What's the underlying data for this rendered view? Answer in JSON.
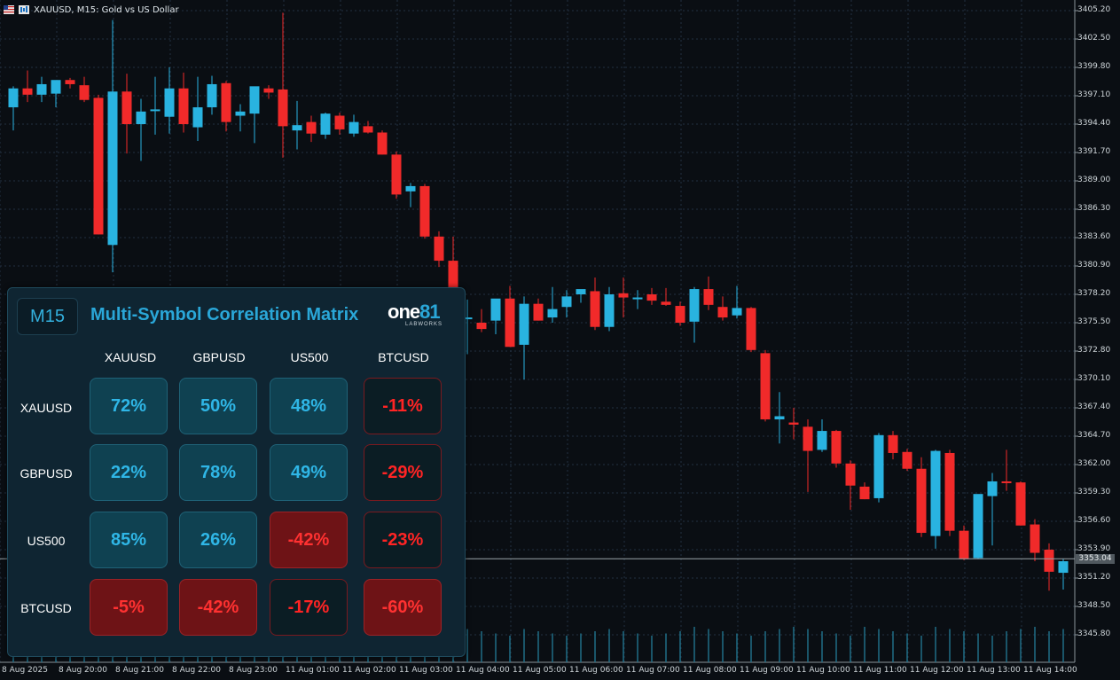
{
  "window": {
    "title": "XAUUSD, M15:  Gold vs US Dollar",
    "icons": [
      "flag-icon",
      "chart-type-icon"
    ]
  },
  "colors": {
    "background": "#0a0e13",
    "bull": "#29b3e0",
    "bear": "#f12a2a",
    "accent": "#2aa7d8",
    "grid": "#233040"
  },
  "price_axis": {
    "labels": [
      "3405.20",
      "3402.50",
      "3399.80",
      "3397.10",
      "3394.40",
      "3391.70",
      "3389.00",
      "3386.30",
      "3383.60",
      "3380.90",
      "3378.20",
      "3375.50",
      "3372.80",
      "3370.10",
      "3367.40",
      "3364.70",
      "3362.00",
      "3359.30",
      "3356.60",
      "3353.90",
      "3351.20",
      "3348.50",
      "3345.80"
    ],
    "current_price": "3353.04"
  },
  "time_axis": {
    "labels": [
      "8 Aug 2025",
      "8 Aug 20:00",
      "8 Aug 21:00",
      "8 Aug 22:00",
      "8 Aug 23:00",
      "11 Aug 01:00",
      "11 Aug 02:00",
      "11 Aug 03:00",
      "11 Aug 04:00",
      "11 Aug 05:00",
      "11 Aug 06:00",
      "11 Aug 07:00",
      "11 Aug 08:00",
      "11 Aug 09:00",
      "11 Aug 10:00",
      "11 Aug 11:00",
      "11 Aug 12:00",
      "11 Aug 13:00",
      "11 Aug 14:00"
    ]
  },
  "chart_data": {
    "type": "candlestick",
    "symbol": "XAUUSD",
    "timeframe": "M15",
    "ylim": [
      3344.5,
      3406.5
    ],
    "candles": [
      {
        "o": 3396.0,
        "h": 3398.0,
        "l": 3393.8,
        "c": 3397.8
      },
      {
        "o": 3397.8,
        "h": 3399.5,
        "l": 3396.5,
        "c": 3397.2
      },
      {
        "o": 3397.2,
        "h": 3398.9,
        "l": 3396.5,
        "c": 3398.2
      },
      {
        "o": 3397.3,
        "h": 3398.5,
        "l": 3396.0,
        "c": 3398.6
      },
      {
        "o": 3398.6,
        "h": 3398.8,
        "l": 3397.8,
        "c": 3398.2
      },
      {
        "o": 3398.1,
        "h": 3398.9,
        "l": 3396.5,
        "c": 3396.7
      },
      {
        "o": 3396.9,
        "h": 3397.2,
        "l": 3383.9,
        "c": 3383.9
      },
      {
        "o": 3382.9,
        "h": 3404.3,
        "l": 3380.3,
        "c": 3397.5
      },
      {
        "o": 3397.5,
        "h": 3399.2,
        "l": 3391.6,
        "c": 3394.4
      },
      {
        "o": 3394.4,
        "h": 3396.8,
        "l": 3390.9,
        "c": 3395.6
      },
      {
        "o": 3395.7,
        "h": 3398.9,
        "l": 3393.4,
        "c": 3395.8
      },
      {
        "o": 3395.1,
        "h": 3399.8,
        "l": 3393.5,
        "c": 3397.8
      },
      {
        "o": 3397.8,
        "h": 3399.3,
        "l": 3393.6,
        "c": 3394.4
      },
      {
        "o": 3394.1,
        "h": 3398.9,
        "l": 3392.8,
        "c": 3396.0
      },
      {
        "o": 3396.0,
        "h": 3399.0,
        "l": 3395.3,
        "c": 3398.2
      },
      {
        "o": 3398.3,
        "h": 3398.5,
        "l": 3393.7,
        "c": 3394.6
      },
      {
        "o": 3395.2,
        "h": 3396.3,
        "l": 3393.7,
        "c": 3395.6
      },
      {
        "o": 3395.4,
        "h": 3397.4,
        "l": 3392.6,
        "c": 3398.0
      },
      {
        "o": 3397.8,
        "h": 3398.1,
        "l": 3396.8,
        "c": 3397.4
      },
      {
        "o": 3397.7,
        "h": 3405.0,
        "l": 3391.2,
        "c": 3394.2
      },
      {
        "o": 3393.8,
        "h": 3396.6,
        "l": 3392.0,
        "c": 3394.3
      },
      {
        "o": 3394.6,
        "h": 3395.2,
        "l": 3392.7,
        "c": 3393.5
      },
      {
        "o": 3393.4,
        "h": 3395.5,
        "l": 3393.0,
        "c": 3395.4
      },
      {
        "o": 3395.2,
        "h": 3395.5,
        "l": 3393.4,
        "c": 3393.9
      },
      {
        "o": 3393.5,
        "h": 3395.3,
        "l": 3393.2,
        "c": 3394.6
      },
      {
        "o": 3394.2,
        "h": 3394.7,
        "l": 3393.5,
        "c": 3393.6
      },
      {
        "o": 3393.6,
        "h": 3393.8,
        "l": 3391.5,
        "c": 3391.5
      },
      {
        "o": 3391.5,
        "h": 3391.8,
        "l": 3387.3,
        "c": 3387.7
      },
      {
        "o": 3388.0,
        "h": 3388.8,
        "l": 3386.5,
        "c": 3388.5
      },
      {
        "o": 3388.5,
        "h": 3388.7,
        "l": 3383.5,
        "c": 3383.7
      },
      {
        "o": 3383.7,
        "h": 3384.2,
        "l": 3380.8,
        "c": 3381.4
      },
      {
        "o": 3381.4,
        "h": 3383.7,
        "l": 3376.2,
        "c": 3376.5
      },
      {
        "o": 3376.0,
        "h": 3377.7,
        "l": 3372.5,
        "c": 3376.0
      },
      {
        "o": 3375.5,
        "h": 3376.8,
        "l": 3374.6,
        "c": 3374.9
      },
      {
        "o": 3375.7,
        "h": 3377.7,
        "l": 3374.4,
        "c": 3377.8
      },
      {
        "o": 3377.8,
        "h": 3379.0,
        "l": 3373.2,
        "c": 3373.2
      },
      {
        "o": 3373.4,
        "h": 3378.0,
        "l": 3370.1,
        "c": 3377.3
      },
      {
        "o": 3377.3,
        "h": 3377.8,
        "l": 3375.7,
        "c": 3375.7
      },
      {
        "o": 3376.0,
        "h": 3378.9,
        "l": 3375.5,
        "c": 3376.8
      },
      {
        "o": 3377.0,
        "h": 3378.6,
        "l": 3376.0,
        "c": 3378.0
      },
      {
        "o": 3378.2,
        "h": 3378.6,
        "l": 3377.4,
        "c": 3378.7
      },
      {
        "o": 3378.5,
        "h": 3379.8,
        "l": 3374.8,
        "c": 3375.1
      },
      {
        "o": 3375.1,
        "h": 3378.9,
        "l": 3374.7,
        "c": 3378.2
      },
      {
        "o": 3378.3,
        "h": 3379.8,
        "l": 3376.0,
        "c": 3377.9
      },
      {
        "o": 3377.9,
        "h": 3378.6,
        "l": 3376.8,
        "c": 3377.9
      },
      {
        "o": 3378.2,
        "h": 3378.8,
        "l": 3377.2,
        "c": 3377.6
      },
      {
        "o": 3377.5,
        "h": 3378.8,
        "l": 3377.1,
        "c": 3377.2
      },
      {
        "o": 3377.1,
        "h": 3377.5,
        "l": 3375.2,
        "c": 3375.5
      },
      {
        "o": 3375.6,
        "h": 3378.9,
        "l": 3373.6,
        "c": 3378.7
      },
      {
        "o": 3378.7,
        "h": 3379.9,
        "l": 3376.7,
        "c": 3377.2
      },
      {
        "o": 3377.0,
        "h": 3378.0,
        "l": 3375.7,
        "c": 3376.0
      },
      {
        "o": 3376.2,
        "h": 3379.0,
        "l": 3375.9,
        "c": 3376.9
      },
      {
        "o": 3376.9,
        "h": 3377.0,
        "l": 3372.7,
        "c": 3372.9
      },
      {
        "o": 3372.6,
        "h": 3372.9,
        "l": 3366.1,
        "c": 3366.3
      },
      {
        "o": 3366.3,
        "h": 3368.9,
        "l": 3364.0,
        "c": 3366.6
      },
      {
        "o": 3366.0,
        "h": 3367.4,
        "l": 3364.4,
        "c": 3365.8
      },
      {
        "o": 3365.6,
        "h": 3366.3,
        "l": 3359.4,
        "c": 3363.3
      },
      {
        "o": 3363.4,
        "h": 3366.3,
        "l": 3363.2,
        "c": 3365.2
      },
      {
        "o": 3365.2,
        "h": 3365.3,
        "l": 3361.7,
        "c": 3362.1
      },
      {
        "o": 3362.1,
        "h": 3362.4,
        "l": 3357.7,
        "c": 3360.0
      },
      {
        "o": 3359.9,
        "h": 3360.3,
        "l": 3358.7,
        "c": 3358.7
      },
      {
        "o": 3358.8,
        "h": 3365.0,
        "l": 3358.4,
        "c": 3364.8
      },
      {
        "o": 3364.8,
        "h": 3365.2,
        "l": 3362.5,
        "c": 3363.1
      },
      {
        "o": 3363.2,
        "h": 3363.5,
        "l": 3361.4,
        "c": 3361.6
      },
      {
        "o": 3361.6,
        "h": 3362.7,
        "l": 3355.1,
        "c": 3355.5
      },
      {
        "o": 3355.2,
        "h": 3363.4,
        "l": 3354.0,
        "c": 3363.3
      },
      {
        "o": 3363.1,
        "h": 3363.4,
        "l": 3355.2,
        "c": 3355.7
      },
      {
        "o": 3355.7,
        "h": 3356.2,
        "l": 3352.9,
        "c": 3353.0
      },
      {
        "o": 3353.1,
        "h": 3358.7,
        "l": 3353.0,
        "c": 3359.2
      },
      {
        "o": 3359.0,
        "h": 3361.2,
        "l": 3354.3,
        "c": 3360.4
      },
      {
        "o": 3360.4,
        "h": 3363.4,
        "l": 3359.5,
        "c": 3360.3
      },
      {
        "o": 3360.3,
        "h": 3360.4,
        "l": 3356.2,
        "c": 3356.2
      },
      {
        "o": 3356.3,
        "h": 3356.8,
        "l": 3352.8,
        "c": 3353.6
      },
      {
        "o": 3353.9,
        "h": 3354.5,
        "l": 3350.0,
        "c": 3351.8
      },
      {
        "o": 3351.7,
        "h": 3353.0,
        "l": 3350.1,
        "c": 3352.8
      }
    ],
    "volume": [
      12,
      14,
      13,
      12,
      15,
      14,
      16,
      12,
      13,
      14,
      15,
      13,
      12,
      14,
      13,
      15,
      16,
      14,
      12,
      13,
      14,
      15,
      13,
      12,
      14,
      16,
      15,
      13,
      14,
      12,
      13,
      14,
      15,
      14,
      13,
      12,
      15,
      14,
      13,
      12,
      13,
      14,
      15,
      14,
      13,
      12,
      13,
      14,
      16,
      15,
      14,
      13,
      12,
      14,
      15,
      16,
      15,
      14,
      13,
      12,
      16,
      15,
      14,
      13,
      12,
      16,
      15,
      14,
      13,
      12,
      14,
      15,
      16,
      14,
      15
    ]
  },
  "matrix": {
    "timeframe": "M15",
    "title": "Multi-Symbol Correlation Matrix",
    "logo": {
      "main": "one",
      "num": "81",
      "sub": "LABWORKS"
    },
    "columns": [
      "XAUUSD",
      "GBPUSD",
      "US500",
      "BTCUSD"
    ],
    "rows": [
      {
        "symbol": "XAUUSD",
        "values": [
          "72%",
          "50%",
          "48%",
          "-11%"
        ],
        "styles": [
          "pos-hi",
          "pos-hi",
          "pos-hi",
          "neg-lo"
        ]
      },
      {
        "symbol": "GBPUSD",
        "values": [
          "22%",
          "78%",
          "49%",
          "-29%"
        ],
        "styles": [
          "pos-hi",
          "pos-hi",
          "pos-hi",
          "neg-lo"
        ]
      },
      {
        "symbol": "US500",
        "values": [
          "85%",
          "26%",
          "-42%",
          "-23%"
        ],
        "styles": [
          "pos-hi",
          "pos-hi",
          "neg-hi",
          "neg-lo"
        ]
      },
      {
        "symbol": "BTCUSD",
        "values": [
          "-5%",
          "-42%",
          "-17%",
          "-60%"
        ],
        "styles": [
          "neg-hi",
          "neg-hi",
          "neg-lo",
          "neg-hi"
        ]
      }
    ]
  }
}
